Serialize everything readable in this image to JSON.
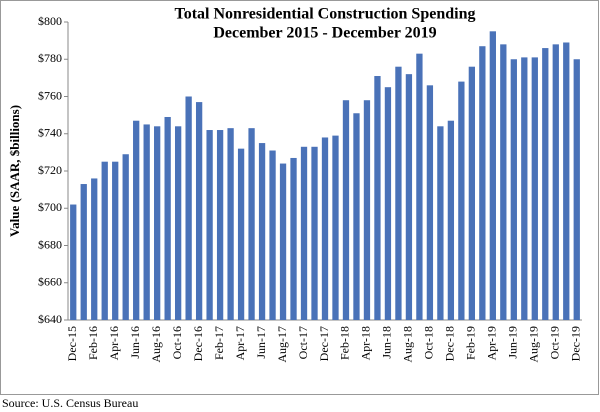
{
  "chart_data": {
    "type": "bar",
    "title": "Total Nonresidential Construction Spending",
    "subtitle": "December 2015 - December 2019",
    "y_label": "Value (SAAR, $billions)",
    "source": "Source:  U.S. Census Bureau",
    "color": "#4a72b8",
    "categories": [
      "Dec-15",
      null,
      "Feb-16",
      null,
      "Apr-16",
      null,
      "Jun-16",
      null,
      "Aug-16",
      null,
      "Oct-16",
      null,
      "Dec-16",
      null,
      "Feb-17",
      null,
      "Apr-17",
      null,
      "Jun-17",
      null,
      "Aug-17",
      null,
      "Oct-17",
      null,
      "Dec-17",
      null,
      "Feb-18",
      null,
      "Apr-18",
      null,
      "Jun-18",
      null,
      "Aug-18",
      null,
      "Oct-18",
      null,
      "Dec-18",
      null,
      "Feb-19",
      null,
      "Apr-19",
      null,
      "Jun-19",
      null,
      "Aug-19",
      null,
      "Oct-19",
      null,
      "Dec-19"
    ],
    "values": [
      702,
      713,
      716,
      725,
      725,
      729,
      747,
      745,
      744,
      749,
      744,
      760,
      757,
      742,
      742,
      743,
      732,
      743,
      735,
      731,
      724,
      727,
      733,
      733,
      738,
      739,
      758,
      751,
      758,
      771,
      765,
      776,
      772,
      783,
      766,
      744,
      747,
      768,
      776,
      787,
      795,
      788,
      780,
      781,
      781,
      786,
      788,
      789,
      780
    ],
    "ylim": [
      640,
      800
    ],
    "yticks": [
      {
        "value": 640,
        "label": "$640"
      },
      {
        "value": 660,
        "label": "$660"
      },
      {
        "value": 680,
        "label": "$680"
      },
      {
        "value": 700,
        "label": "$700"
      },
      {
        "value": 720,
        "label": "$720"
      },
      {
        "value": 740,
        "label": "$740"
      },
      {
        "value": 760,
        "label": "$760"
      },
      {
        "value": 780,
        "label": "$780"
      },
      {
        "value": 800,
        "label": "$800"
      }
    ],
    "grid": false
  }
}
